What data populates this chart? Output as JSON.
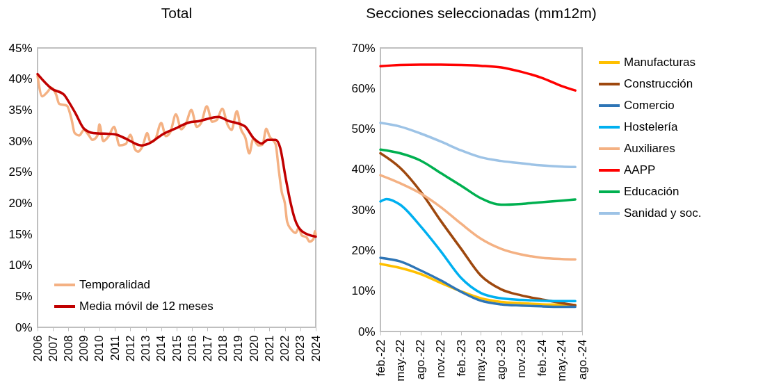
{
  "chart_data": [
    {
      "type": "line",
      "title": "Total",
      "legend": "bottom left",
      "xlim": [
        2006,
        2024
      ],
      "xticks": [
        2006,
        2007,
        2008,
        2009,
        2010,
        2011,
        2012,
        2013,
        2014,
        2015,
        2016,
        2017,
        2018,
        2019,
        2020,
        2021,
        2022,
        2023,
        2024
      ],
      "ylim": [
        0,
        45
      ],
      "yticks": [
        {
          "value": 0,
          "label": "0%"
        },
        {
          "value": 5,
          "label": "5%"
        },
        {
          "value": 10,
          "label": "10%"
        },
        {
          "value": 15,
          "label": "15%"
        },
        {
          "value": 20,
          "label": "20%"
        },
        {
          "value": 25,
          "label": "25%"
        },
        {
          "value": 30,
          "label": "30%"
        },
        {
          "value": 35,
          "label": "35%"
        },
        {
          "value": 40,
          "label": "40%"
        },
        {
          "value": 45,
          "label": "45%"
        }
      ],
      "series": [
        {
          "name": "Temporalidad",
          "color": "#f4b183",
          "x": [
            2006.0,
            2006.3,
            2006.6,
            2006.9,
            2007.2,
            2007.4,
            2007.9,
            2008.2,
            2008.4,
            2008.7,
            2009.0,
            2009.3,
            2009.55,
            2009.9,
            2010.0,
            2010.25,
            2010.6,
            2010.95,
            2011.3,
            2011.7,
            2012.0,
            2012.3,
            2012.5,
            2012.8,
            2013.1,
            2013.3,
            2013.6,
            2014.0,
            2014.3,
            2014.6,
            2014.95,
            2015.3,
            2015.6,
            2015.95,
            2016.3,
            2016.6,
            2016.95,
            2017.3,
            2017.6,
            2017.95,
            2018.3,
            2018.55,
            2018.9,
            2019.15,
            2019.45,
            2019.7,
            2019.95,
            2020.3,
            2020.55,
            2020.8,
            2021.0,
            2021.4,
            2021.6,
            2021.8,
            2022.0,
            2022.15,
            2022.4,
            2022.7,
            2022.9,
            2023.1,
            2023.4,
            2023.6,
            2023.85,
            2023.95,
            2024.0
          ],
          "values": [
            40.5,
            37.2,
            37.8,
            38.6,
            37.5,
            36.0,
            35.7,
            33.5,
            31.3,
            30.9,
            31.8,
            31.0,
            30.2,
            31.0,
            32.7,
            30.0,
            30.8,
            32.3,
            29.3,
            29.5,
            31.0,
            28.7,
            28.3,
            29.2,
            31.3,
            29.8,
            30.2,
            32.9,
            30.8,
            31.5,
            34.3,
            31.9,
            32.8,
            35.0,
            32.3,
            33.0,
            35.6,
            33.1,
            33.4,
            35.2,
            32.6,
            31.8,
            34.8,
            32.0,
            30.5,
            28.0,
            30.3,
            29.3,
            29.4,
            32.0,
            30.8,
            29.5,
            25.5,
            21.8,
            20.0,
            17.0,
            15.8,
            15.2,
            16.0,
            14.8,
            14.5,
            13.8,
            14.2,
            15.5,
            14.9
          ]
        },
        {
          "name": "Media móvil de 12 meses",
          "color": "#c00000",
          "x": [
            2006.0,
            2006.94,
            2007.7,
            2008.0,
            2008.45,
            2009.0,
            2009.6,
            2011.0,
            2011.7,
            2012.7,
            2013.2,
            2014.1,
            2014.9,
            2015.8,
            2016.4,
            2017.7,
            2018.3,
            2019.4,
            2020.0,
            2020.5,
            2020.9,
            2021.4,
            2021.7,
            2022.05,
            2022.35,
            2022.65,
            2023.1,
            2024.0
          ],
          "values": [
            40.8,
            38.4,
            37.5,
            36.4,
            34.5,
            32.0,
            31.3,
            31.1,
            30.4,
            29.3,
            29.6,
            31.1,
            32.0,
            33.0,
            33.2,
            33.9,
            33.3,
            32.4,
            30.4,
            29.6,
            30.2,
            30.2,
            28.9,
            24.1,
            20.3,
            17.4,
            15.5,
            14.6
          ]
        }
      ]
    },
    {
      "type": "line",
      "title": "Secciones seleccionadas (mm12m)",
      "legend": "right",
      "x": [
        "2022-02",
        "2022-05",
        "2022-08",
        "2022-11",
        "2023-02",
        "2023-05",
        "2023-08",
        "2023-11",
        "2024-02",
        "2024-05",
        "2024-07"
      ],
      "xlim": [
        "2022-02",
        "2024-08"
      ],
      "xticks": [
        {
          "value": "2022-02",
          "label": "feb.-22"
        },
        {
          "value": "2022-05",
          "label": "may.-22"
        },
        {
          "value": "2022-08",
          "label": "ago.-22"
        },
        {
          "value": "2022-11",
          "label": "nov.-22"
        },
        {
          "value": "2023-02",
          "label": "feb.-23"
        },
        {
          "value": "2023-05",
          "label": "may.-23"
        },
        {
          "value": "2023-08",
          "label": "ago.-23"
        },
        {
          "value": "2023-11",
          "label": "nov.-23"
        },
        {
          "value": "2024-02",
          "label": "feb.-24"
        },
        {
          "value": "2024-05",
          "label": "may.-24"
        },
        {
          "value": "2024-08",
          "label": "ago.-24"
        }
      ],
      "ylim": [
        0,
        70
      ],
      "yticks": [
        {
          "value": 0,
          "label": "0%"
        },
        {
          "value": 10,
          "label": "10%"
        },
        {
          "value": 20,
          "label": "20%"
        },
        {
          "value": 30,
          "label": "30%"
        },
        {
          "value": 40,
          "label": "40%"
        },
        {
          "value": 50,
          "label": "50%"
        },
        {
          "value": 60,
          "label": "60%"
        },
        {
          "value": 70,
          "label": "70%"
        }
      ],
      "series": [
        {
          "name": "Manufacturas",
          "color": "#ffc000",
          "values": [
            16.7,
            15.7,
            14.2,
            12.0,
            9.9,
            8.2,
            7.3,
            7.0,
            6.7,
            6.6,
            6.5
          ]
        },
        {
          "name": "Construcción",
          "color": "#9e480e",
          "values": [
            44.0,
            40.4,
            34.6,
            27.3,
            20.4,
            13.8,
            10.4,
            8.9,
            7.9,
            7.0,
            6.5
          ]
        },
        {
          "name": "Comercio",
          "color": "#2e75b6",
          "values": [
            18.2,
            17.3,
            15.1,
            12.6,
            9.8,
            7.6,
            6.7,
            6.4,
            6.2,
            6.1,
            6.1
          ]
        },
        {
          "name": "Hostelería",
          "color": "#00b0f0",
          "x": [
            "2022-02",
            "2022-03",
            "2022-05",
            "2022-08",
            "2022-11",
            "2023-02",
            "2023-05",
            "2023-08",
            "2023-11",
            "2024-02",
            "2024-05",
            "2024-07"
          ],
          "values": [
            32.1,
            32.7,
            31.3,
            26.0,
            19.8,
            13.2,
            9.5,
            8.2,
            7.8,
            7.6,
            7.5,
            7.5
          ]
        },
        {
          "name": "Auxiliares",
          "color": "#f4b183",
          "values": [
            38.6,
            36.6,
            34.1,
            30.7,
            26.6,
            22.9,
            20.4,
            19.0,
            18.2,
            17.9,
            17.8
          ]
        },
        {
          "name": "AAPP",
          "color": "#ff0000",
          "values": [
            65.5,
            65.8,
            65.9,
            65.9,
            65.8,
            65.6,
            65.2,
            64.1,
            62.6,
            60.6,
            59.5
          ]
        },
        {
          "name": "Educación",
          "color": "#00b050",
          "values": [
            44.9,
            44.0,
            42.2,
            39.1,
            36.0,
            32.9,
            31.3,
            31.5,
            31.9,
            32.3,
            32.6
          ]
        },
        {
          "name": "Sanidad y soc.",
          "color": "#9dc3e6",
          "values": [
            51.5,
            50.6,
            48.9,
            46.9,
            44.7,
            43.0,
            42.1,
            41.5,
            41.0,
            40.7,
            40.6
          ]
        }
      ]
    }
  ]
}
